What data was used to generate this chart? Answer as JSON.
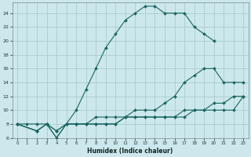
{
  "title": "",
  "xlabel": "Humidex (Indice chaleur)",
  "bg_color": "#cce8ec",
  "grid_color": "#aacccc",
  "line_color": "#1a6660",
  "xlim": [
    -0.5,
    23.5
  ],
  "ylim": [
    6,
    25.5
  ],
  "xticks": [
    0,
    1,
    2,
    3,
    4,
    5,
    6,
    7,
    8,
    9,
    10,
    11,
    12,
    13,
    14,
    15,
    16,
    17,
    18,
    19,
    20,
    21,
    22,
    23
  ],
  "yticks": [
    6,
    8,
    10,
    12,
    14,
    16,
    18,
    20,
    22,
    24
  ],
  "curve1_x": [
    0,
    1,
    2,
    3,
    4,
    5,
    6,
    7,
    8,
    9,
    10,
    11,
    12,
    13,
    14,
    15,
    16,
    17,
    18,
    19,
    20
  ],
  "curve1_y": [
    8,
    8,
    8,
    8,
    7,
    8,
    10,
    13,
    16,
    19,
    21,
    23,
    24,
    25,
    25,
    24,
    24,
    24,
    22,
    21,
    20
  ],
  "curve2_x": [
    0,
    2,
    3,
    4,
    5,
    6,
    7,
    8,
    9,
    10,
    11,
    12,
    13,
    14,
    15,
    16,
    17,
    18,
    19,
    20,
    21,
    22,
    23
  ],
  "curve2_y": [
    8,
    7,
    8,
    6,
    8,
    8,
    8,
    9,
    9,
    9,
    9,
    10,
    10,
    10,
    11,
    12,
    14,
    15,
    16,
    16,
    14,
    14,
    14
  ],
  "curve3_x": [
    0,
    2,
    3,
    4,
    5,
    6,
    7,
    8,
    9,
    10,
    11,
    12,
    13,
    14,
    15,
    16,
    17,
    18,
    19,
    20,
    21,
    22,
    23
  ],
  "curve3_y": [
    8,
    7,
    8,
    6,
    8,
    8,
    8,
    8,
    8,
    8,
    9,
    9,
    9,
    9,
    9,
    9,
    10,
    10,
    10,
    11,
    11,
    12,
    12
  ],
  "curve4_x": [
    0,
    2,
    3,
    4,
    5,
    6,
    7,
    8,
    9,
    10,
    11,
    12,
    13,
    14,
    15,
    16,
    17,
    18,
    19,
    20,
    21,
    22,
    23
  ],
  "curve4_y": [
    8,
    7,
    8,
    7,
    8,
    8,
    8,
    8,
    8,
    8,
    9,
    9,
    9,
    9,
    9,
    9,
    9,
    10,
    10,
    10,
    10,
    10,
    12
  ]
}
